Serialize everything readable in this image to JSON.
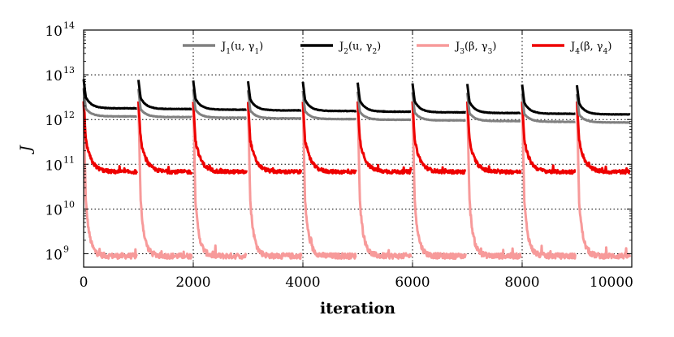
{
  "chart_data": {
    "type": "line",
    "title": "",
    "xlabel": "iteration",
    "ylabel": "J",
    "xlim": [
      0,
      10000
    ],
    "ylim_log10": [
      8.7,
      14
    ],
    "yscale": "log",
    "grid": "dotted",
    "legend_position": "top",
    "x_ticks": [
      {
        "value": 0,
        "label": "0"
      },
      {
        "value": 2000,
        "label": "2000"
      },
      {
        "value": 4000,
        "label": "4000"
      },
      {
        "value": 6000,
        "label": "6000"
      },
      {
        "value": 8000,
        "label": "8000"
      },
      {
        "value": 10000,
        "label": "10000"
      }
    ],
    "y_ticks": [
      {
        "exp": 9,
        "base": "10",
        "power": "9"
      },
      {
        "exp": 10,
        "base": "10",
        "power": "10"
      },
      {
        "exp": 11,
        "base": "10",
        "power": "11"
      },
      {
        "exp": 12,
        "base": "10",
        "power": "12"
      },
      {
        "exp": 13,
        "base": "10",
        "power": "13"
      },
      {
        "exp": 14,
        "base": "10",
        "power": "14"
      }
    ],
    "restart_interval": 1000,
    "series": [
      {
        "name": "J1(u, γ1)",
        "label_main": "J",
        "label_sub": "1",
        "label_args": "(u, γ",
        "label_sub2": "1",
        "label_close": ")",
        "color": "#808080",
        "profile": {
          "start": 12.7,
          "quick": 12.25,
          "plateau": 12.07,
          "drift_per_cycle": -0.015,
          "noise": 0.005,
          "sharpness": 4
        }
      },
      {
        "name": "J2(u, γ2)",
        "label_main": "J",
        "label_sub": "2",
        "label_args": "(u, γ",
        "label_sub2": "2",
        "label_close": ")",
        "color": "#000000",
        "profile": {
          "start": 12.9,
          "quick": 12.5,
          "plateau": 12.25,
          "drift_per_cycle": -0.015,
          "noise": 0.005,
          "sharpness": 4
        }
      },
      {
        "name": "J3(β, γ3)",
        "label_main": "J",
        "label_sub": "3",
        "label_args": "(β, γ",
        "label_sub2": "3",
        "label_close": ")",
        "color": "#f79a9a",
        "profile": {
          "start": 12.4,
          "quick": 10.2,
          "plateau": 8.95,
          "drift_per_cycle": 0,
          "noise": 0.06,
          "sharpness": 6
        }
      },
      {
        "name": "J4(β, γ4)",
        "label_main": "J",
        "label_sub": "4",
        "label_args": "(β, γ",
        "label_sub2": "4",
        "label_close": ")",
        "color": "#ee0000",
        "profile": {
          "start": 12.4,
          "quick": 11.55,
          "plateau": 10.83,
          "drift_per_cycle": 0,
          "noise": 0.04,
          "sharpness": 4
        }
      }
    ]
  }
}
